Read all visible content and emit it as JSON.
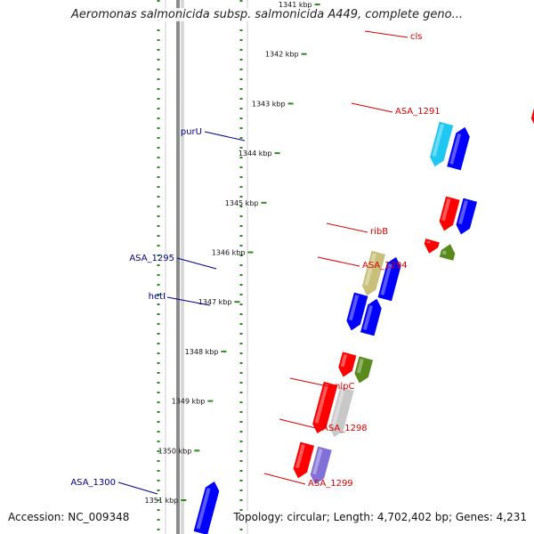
{
  "title": "Aeromonas salmonicida subsp. salmonicida A449, complete geno...",
  "accession": "Accession: NC_009348",
  "topology": "Topology: circular; Length: 4,702,402 bp; Genes: 4,231",
  "colors": {
    "backbone": "#8c8c8c",
    "track_dots": "#2e8b22",
    "forward_label": "#00008b",
    "reverse_label": "#dd0000",
    "gene_red": "#ff0000",
    "gene_blue": "#0000ff",
    "gene_cyan": "#1ec8f0",
    "gene_khaki": "#c8c07a",
    "gene_olive": "#5a8a1e",
    "gene_lavender": "#8070d8",
    "gene_gray": "#c8c8c8"
  },
  "ticks": [
    {
      "label": "1341 kbp"
    },
    {
      "label": "1342 kbp"
    },
    {
      "label": "1343 kbp"
    },
    {
      "label": "1344 kbp"
    },
    {
      "label": "1345 kbp"
    },
    {
      "label": "1346 kbp"
    },
    {
      "label": "1347 kbp"
    },
    {
      "label": "1348 kbp"
    },
    {
      "label": "1349 kbp"
    },
    {
      "label": "1350 kbp"
    },
    {
      "label": "1351 kbp"
    }
  ],
  "gene_labels": [
    {
      "text": "cls",
      "side": "right"
    },
    {
      "text": "ASA_1291",
      "side": "right"
    },
    {
      "text": "purU",
      "side": "left"
    },
    {
      "text": "ribB",
      "side": "right"
    },
    {
      "text": "ASA_1294",
      "side": "right"
    },
    {
      "text": "ASA_1295",
      "side": "left"
    },
    {
      "text": "hetI",
      "side": "left"
    },
    {
      "text": "nlpC",
      "side": "right"
    },
    {
      "text": "ASA_1298",
      "side": "right"
    },
    {
      "text": "ASA_1299",
      "side": "right"
    },
    {
      "text": "ASA_1300",
      "side": "left"
    }
  ]
}
